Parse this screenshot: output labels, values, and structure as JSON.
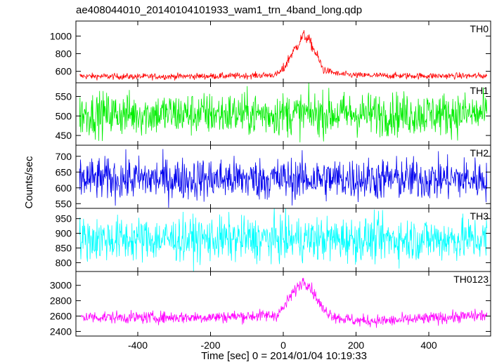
{
  "chart_data": {
    "type": "line",
    "title": "ae408044010_20140104101933_wam1_trn_4band_long.qdp",
    "ylabel": "Counts/sec",
    "xlabel": "Time [sec] 0 = 2014/01/04 10:19:33",
    "xlim": [
      -570,
      570
    ],
    "x_ticks": [
      -400,
      -200,
      0,
      200,
      400
    ],
    "panels": [
      {
        "name": "TH0",
        "color": "#ff0000",
        "ylim": [
          470,
          1170
        ],
        "y_ticks": [
          600,
          800,
          1000
        ],
        "baseline": 548,
        "noise": 18,
        "burst": {
          "peak": 1090,
          "center": 55,
          "width": 42,
          "shoulders": [
            [
              5,
              690
            ],
            [
              95,
              730
            ]
          ]
        },
        "profile": {
          "x": [
            -560,
            -400,
            -200,
            -100,
            -20,
            0,
            20,
            40,
            55,
            70,
            90,
            110,
            150,
            200,
            300,
            400,
            560
          ],
          "y": [
            545,
            540,
            545,
            550,
            560,
            620,
            780,
            900,
            1010,
            960,
            800,
            620,
            570,
            555,
            550,
            548,
            548
          ]
        }
      },
      {
        "name": "TH1",
        "color": "#00ee00",
        "ylim": [
          425,
          585
        ],
        "y_ticks": [
          450,
          500,
          550
        ],
        "baseline": 505,
        "noise": 28,
        "profile": {
          "x": [
            -560,
            560
          ],
          "y": [
            505,
            505
          ]
        }
      },
      {
        "name": "TH2",
        "color": "#0000ee",
        "ylim": [
          535,
          735
        ],
        "y_ticks": [
          550,
          600,
          650,
          700
        ],
        "baseline": 628,
        "noise": 34,
        "profile": {
          "x": [
            -560,
            560
          ],
          "y": [
            628,
            628
          ]
        }
      },
      {
        "name": "TH3",
        "color": "#00ffff",
        "ylim": [
          770,
          985
        ],
        "y_ticks": [
          800,
          850,
          900,
          950
        ],
        "baseline": 880,
        "noise": 38,
        "profile": {
          "x": [
            -560,
            560
          ],
          "y": [
            880,
            880
          ]
        }
      },
      {
        "name": "TH0123",
        "color": "#ff00ff",
        "ylim": [
          2340,
          3180
        ],
        "y_ticks": [
          2400,
          2600,
          2800,
          3000
        ],
        "baseline": 2600,
        "noise": 40,
        "profile": {
          "x": [
            -560,
            -400,
            -200,
            -100,
            -20,
            0,
            20,
            40,
            55,
            70,
            90,
            110,
            150,
            200,
            300,
            400,
            560
          ],
          "y": [
            2590,
            2580,
            2585,
            2600,
            2610,
            2700,
            2860,
            2980,
            3060,
            3010,
            2850,
            2680,
            2580,
            2540,
            2540,
            2570,
            2610
          ]
        }
      }
    ],
    "legend": "none",
    "grid": false
  }
}
